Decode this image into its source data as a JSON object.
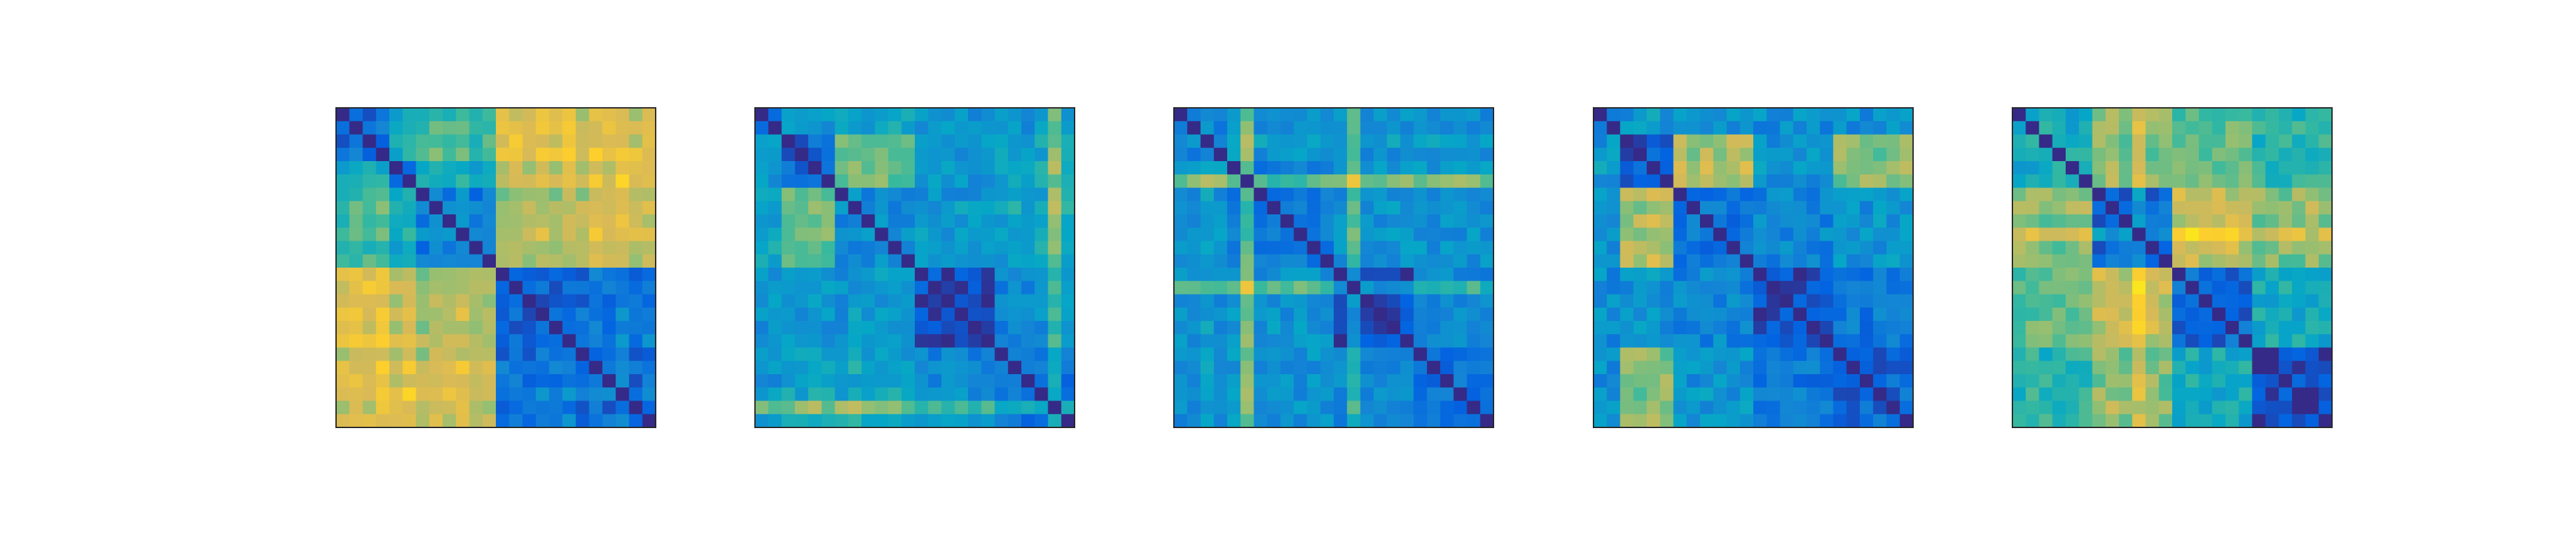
{
  "figure": {
    "background": "#ffffff",
    "frame_color": "#262626",
    "colormap": "parula",
    "colormap_stops": [
      "#352a87",
      "#0363e1",
      "#1485d4",
      "#06a7c6",
      "#38b99e",
      "#92bf73",
      "#d9ba56",
      "#fcce2e",
      "#f9fb0e"
    ]
  },
  "chart_data": [
    {
      "type": "heatmap",
      "title": "",
      "xlabel": "",
      "ylabel": "",
      "rows": 24,
      "cols": 24,
      "clim": [
        0,
        1
      ],
      "grid": false,
      "ticks": false,
      "legend": "none",
      "blocks": [
        [
          0,
          4
        ],
        [
          4,
          6
        ],
        [
          6,
          12
        ],
        [
          12,
          18
        ],
        [
          18,
          24
        ]
      ],
      "block_means": [
        [
          0.1,
          0.35,
          0.45,
          0.75,
          0.7
        ],
        [
          0.35,
          0.1,
          0.35,
          0.7,
          0.72
        ],
        [
          0.45,
          0.35,
          0.18,
          0.62,
          0.65
        ],
        [
          0.75,
          0.7,
          0.62,
          0.1,
          0.15
        ],
        [
          0.7,
          0.72,
          0.65,
          0.15,
          0.12
        ]
      ],
      "row_weights": [
        0.0,
        0.04,
        0.02,
        0.06,
        0.0,
        0.03,
        0.0,
        0.05,
        0.02,
        0.09,
        0.0,
        0.03,
        0.0,
        0.02,
        0.0,
        0.03,
        0.0,
        0.04,
        0.0,
        0.05,
        0.02,
        0.08,
        0.0,
        0.06
      ],
      "noise": 0.07
    },
    {
      "type": "heatmap",
      "title": "",
      "xlabel": "",
      "ylabel": "",
      "rows": 24,
      "cols": 24,
      "clim": [
        0,
        1
      ],
      "grid": false,
      "ticks": false,
      "legend": "none",
      "blocks": [
        [
          0,
          2
        ],
        [
          2,
          6
        ],
        [
          6,
          12
        ],
        [
          12,
          18
        ],
        [
          18,
          24
        ]
      ],
      "block_means": [
        [
          0.2,
          0.3,
          0.35,
          0.3,
          0.28
        ],
        [
          0.3,
          0.12,
          0.55,
          0.3,
          0.35
        ],
        [
          0.35,
          0.55,
          0.25,
          0.3,
          0.35
        ],
        [
          0.3,
          0.3,
          0.3,
          0.08,
          0.25
        ],
        [
          0.28,
          0.35,
          0.35,
          0.25,
          0.15
        ]
      ],
      "row_weights": [
        0.0,
        0.02,
        0.0,
        0.0,
        0.05,
        0.0,
        0.0,
        0.03,
        0.0,
        0.02,
        0.0,
        0.0,
        0.0,
        0.0,
        0.0,
        0.0,
        0.0,
        0.0,
        0.0,
        0.02,
        0.0,
        0.03,
        0.25,
        0.05
      ],
      "noise": 0.08
    },
    {
      "type": "heatmap",
      "title": "",
      "xlabel": "",
      "ylabel": "",
      "rows": 24,
      "cols": 24,
      "clim": [
        0,
        1
      ],
      "grid": false,
      "ticks": false,
      "legend": "none",
      "blocks": [
        [
          0,
          4
        ],
        [
          4,
          12
        ],
        [
          12,
          18
        ],
        [
          18,
          24
        ]
      ],
      "block_means": [
        [
          0.22,
          0.3,
          0.28,
          0.28
        ],
        [
          0.3,
          0.22,
          0.3,
          0.3
        ],
        [
          0.28,
          0.3,
          0.08,
          0.25
        ],
        [
          0.28,
          0.3,
          0.25,
          0.18
        ]
      ],
      "row_weights": [
        0.0,
        0.0,
        0.05,
        0.0,
        0.0,
        0.3,
        0.0,
        0.0,
        0.0,
        0.0,
        0.0,
        0.0,
        0.0,
        0.22,
        0.0,
        0.0,
        0.0,
        0.0,
        0.0,
        0.0,
        0.0,
        0.0,
        0.0,
        0.0
      ],
      "noise": 0.08
    },
    {
      "type": "heatmap",
      "title": "",
      "xlabel": "",
      "ylabel": "",
      "rows": 24,
      "cols": 24,
      "clim": [
        0,
        1
      ],
      "grid": false,
      "ticks": false,
      "legend": "none",
      "blocks": [
        [
          0,
          2
        ],
        [
          2,
          6
        ],
        [
          6,
          12
        ],
        [
          12,
          18
        ],
        [
          18,
          24
        ]
      ],
      "block_means": [
        [
          0.15,
          0.3,
          0.3,
          0.28,
          0.28
        ],
        [
          0.3,
          0.05,
          0.65,
          0.3,
          0.6
        ],
        [
          0.3,
          0.65,
          0.2,
          0.25,
          0.3
        ],
        [
          0.28,
          0.3,
          0.25,
          0.08,
          0.2
        ],
        [
          0.28,
          0.6,
          0.3,
          0.2,
          0.15
        ]
      ],
      "row_weights": [
        0.0,
        0.0,
        0.0,
        0.0,
        0.05,
        0.0,
        0.0,
        0.0,
        0.0,
        0.0,
        0.0,
        0.0,
        0.0,
        0.0,
        0.0,
        0.0,
        0.0,
        0.0,
        0.0,
        0.0,
        0.0,
        0.0,
        0.0,
        0.0
      ],
      "noise": 0.09
    },
    {
      "type": "heatmap",
      "title": "",
      "xlabel": "",
      "ylabel": "",
      "rows": 24,
      "cols": 24,
      "clim": [
        0,
        1
      ],
      "grid": false,
      "ticks": false,
      "legend": "none",
      "blocks": [
        [
          0,
          6
        ],
        [
          6,
          12
        ],
        [
          12,
          18
        ],
        [
          18,
          24
        ]
      ],
      "block_means": [
        [
          0.4,
          0.6,
          0.55,
          0.45
        ],
        [
          0.6,
          0.15,
          0.7,
          0.6
        ],
        [
          0.55,
          0.7,
          0.15,
          0.4
        ],
        [
          0.45,
          0.6,
          0.4,
          0.08
        ]
      ],
      "row_weights": [
        0.0,
        0.0,
        0.0,
        0.0,
        0.0,
        0.0,
        0.0,
        0.05,
        0.0,
        0.15,
        0.0,
        0.0,
        0.0,
        0.0,
        0.0,
        0.0,
        0.0,
        0.0,
        0.0,
        0.0,
        0.0,
        0.0,
        0.0,
        0.0
      ],
      "noise": 0.09
    }
  ]
}
